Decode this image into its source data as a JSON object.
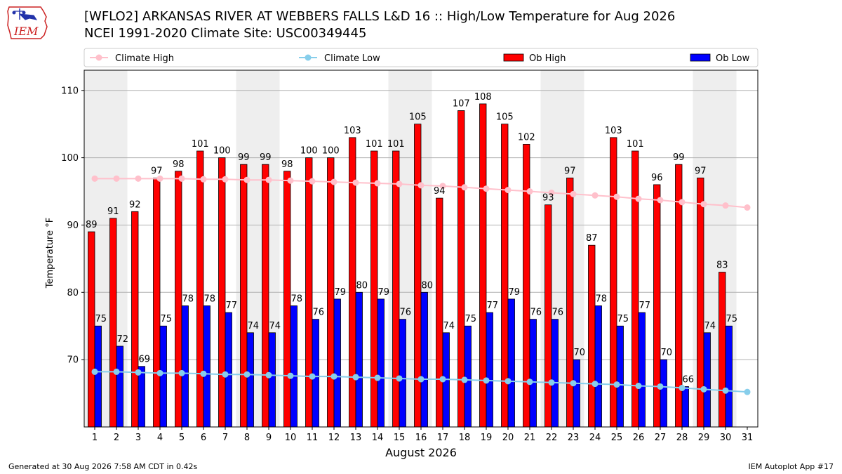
{
  "header": {
    "title_line1": "[WFLO2] ARKANSAS RIVER  AT WEBBERS FALLS L&D 16 :: High/Low Temperature for Aug 2026",
    "title_line2": "NCEI 1991-2020 Climate Site: USC00349445",
    "logo_text": "IEM"
  },
  "footer": {
    "generated": "Generated at 30 Aug 2026 7:58 AM CDT in 0.42s",
    "app": "IEM Autoplot App #17"
  },
  "colors": {
    "ob_high": "#ff0000",
    "ob_low": "#0000ff",
    "climate_high": "#ffc0cb",
    "climate_low": "#87ceeb",
    "weekend_shade": "#eeeeee",
    "logo": "#cc2222"
  },
  "chart_data": {
    "type": "bar",
    "xlabel": "August 2026",
    "ylabel": "Temperature °F",
    "ylim": [
      60,
      113
    ],
    "yticks": [
      70,
      80,
      90,
      100,
      110
    ],
    "grid": true,
    "legend_position": "top",
    "categories": [
      "1",
      "2",
      "3",
      "4",
      "5",
      "6",
      "7",
      "8",
      "9",
      "10",
      "11",
      "12",
      "13",
      "14",
      "15",
      "16",
      "17",
      "18",
      "19",
      "20",
      "21",
      "22",
      "23",
      "24",
      "25",
      "26",
      "27",
      "28",
      "29",
      "30",
      "31"
    ],
    "weekend_days": [
      1,
      2,
      8,
      9,
      15,
      16,
      22,
      23,
      29,
      30
    ],
    "series": [
      {
        "name": "Ob High",
        "kind": "bar",
        "color": "#ff0000",
        "values": [
          89,
          91,
          92,
          97,
          98,
          101,
          100,
          99,
          99,
          98,
          100,
          100,
          103,
          101,
          101,
          105,
          94,
          107,
          108,
          105,
          102,
          93,
          97,
          87,
          103,
          101,
          96,
          99,
          97,
          83,
          null
        ]
      },
      {
        "name": "Ob Low",
        "kind": "bar",
        "color": "#0000ff",
        "values": [
          75,
          72,
          69,
          75,
          78,
          78,
          77,
          74,
          74,
          78,
          76,
          79,
          80,
          79,
          76,
          80,
          74,
          75,
          77,
          79,
          76,
          76,
          70,
          78,
          75,
          77,
          70,
          66,
          74,
          75,
          null
        ]
      },
      {
        "name": "Climate High",
        "kind": "line",
        "color": "#ffc0cb",
        "values": [
          96.9,
          96.9,
          96.9,
          96.9,
          96.9,
          96.8,
          96.8,
          96.7,
          96.7,
          96.6,
          96.5,
          96.4,
          96.3,
          96.2,
          96.1,
          95.9,
          95.8,
          95.6,
          95.4,
          95.2,
          95.0,
          94.8,
          94.6,
          94.4,
          94.2,
          93.9,
          93.7,
          93.4,
          93.1,
          92.9,
          92.6
        ]
      },
      {
        "name": "Climate Low",
        "kind": "line",
        "color": "#87ceeb",
        "values": [
          68.2,
          68.2,
          68.1,
          68.0,
          68.0,
          67.9,
          67.8,
          67.8,
          67.7,
          67.6,
          67.5,
          67.5,
          67.4,
          67.3,
          67.2,
          67.1,
          67.1,
          67.0,
          66.9,
          66.8,
          66.7,
          66.6,
          66.5,
          66.4,
          66.3,
          66.1,
          66.0,
          65.8,
          65.6,
          65.4,
          65.2
        ]
      }
    ]
  }
}
